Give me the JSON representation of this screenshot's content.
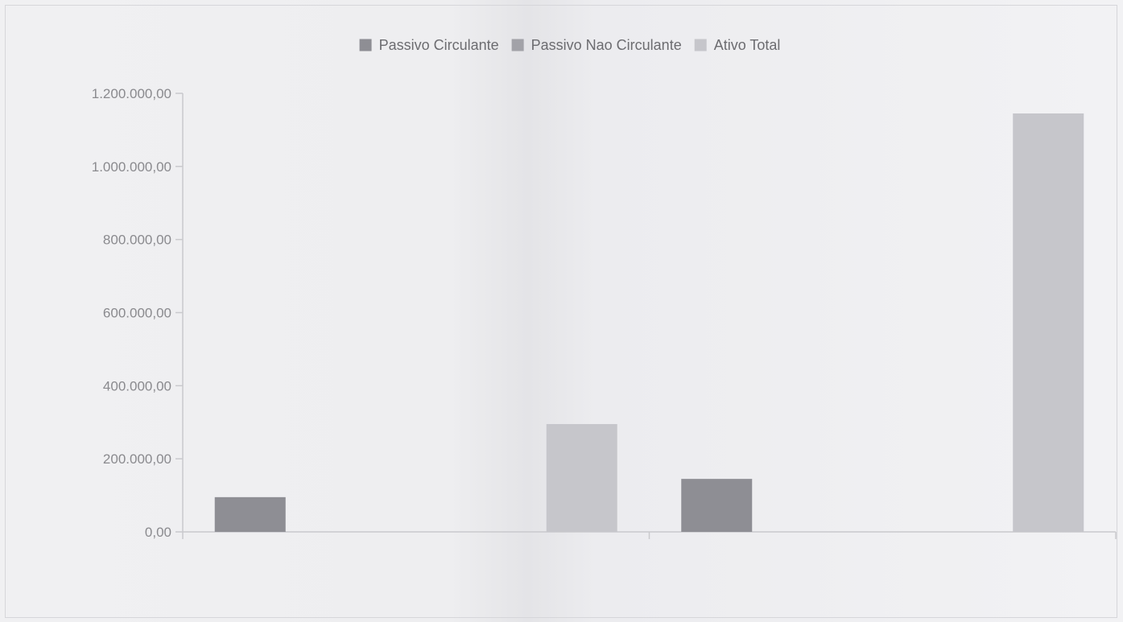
{
  "colors": {
    "passivo_circulante": "#8e8e94",
    "passivo_nao_circulante": "#a2a2a8",
    "ativo_total": "#c6c6cb",
    "axis": "#c9c9cd",
    "tick_text": "#8a8a8e",
    "legend_text": "#6c6c70"
  },
  "chart_data": {
    "type": "bar",
    "title": "",
    "xlabel": "",
    "ylabel": "",
    "legend_position": "top-center",
    "grid": false,
    "ylim": [
      0,
      1200000
    ],
    "y_ticks": [
      0,
      200000,
      400000,
      600000,
      800000,
      1000000,
      1200000
    ],
    "y_tick_labels": [
      "0,00",
      "200.000,00",
      "400.000,00",
      "600.000,00",
      "800.000,00",
      "1.000.000,00",
      "1.200.000,00"
    ],
    "categories": [
      "",
      ""
    ],
    "series": [
      {
        "name": "Passivo Circulante",
        "color_key": "passivo_circulante",
        "values": [
          95000,
          145000
        ]
      },
      {
        "name": "Passivo Nao Circulante",
        "color_key": "passivo_nao_circulante",
        "values": [
          0,
          0
        ]
      },
      {
        "name": "Ativo Total",
        "color_key": "ativo_total",
        "values": [
          295000,
          1145000
        ]
      }
    ]
  }
}
